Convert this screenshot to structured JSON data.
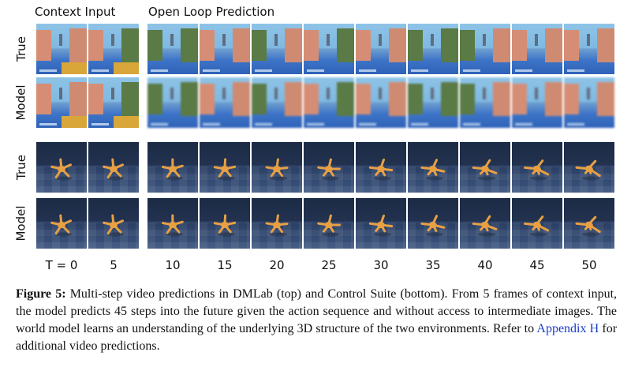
{
  "headers": {
    "context": "Context Input",
    "open_loop": "Open Loop Prediction"
  },
  "row_labels": [
    "True",
    "Model",
    "True",
    "Model"
  ],
  "time_ticks": [
    "T = 0",
    "5",
    "10",
    "15",
    "20",
    "25",
    "30",
    "35",
    "40",
    "45",
    "50"
  ],
  "caption": {
    "figure_label": "Figure 5:",
    "text_before_link": "Multi-step video predictions in DMLab (top) and Control Suite (bottom). From 5 frames of context input, the model predicts 45 steps into the future given the action sequence and without access to intermediate images. The world model learns an understanding of the underlying 3D structure of the two environments. Refer to",
    "link_text": "Appendix H",
    "text_after_link": "for additional video predictions."
  },
  "colors": {
    "link": "#1a3cc8",
    "wall_pink": "#d58e75",
    "wall_green": "#5a7a46",
    "floor_blue": "#3d74c7",
    "cs_background": "#22324f",
    "agent_orange": "#e8a044"
  }
}
